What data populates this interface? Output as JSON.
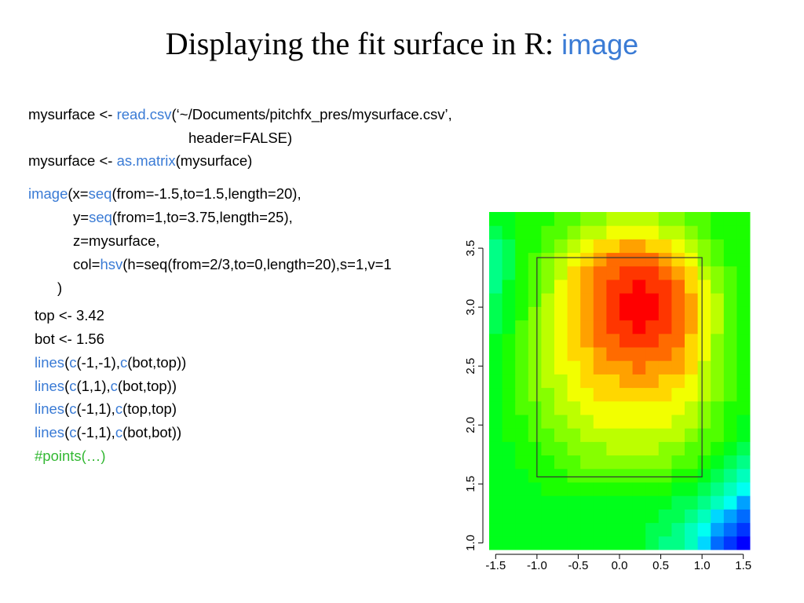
{
  "slide": {
    "title": [
      "Displaying the fit surface in R: ",
      "image"
    ]
  },
  "code": {
    "block1": [
      [
        "mysurface <- ",
        "read.csv",
        "(‘~/Documents/pitchfx_pres/mysurface.csv’,"
      ],
      [
        "header=FALSE)"
      ],
      [
        "mysurface <- ",
        "as.matrix",
        "(mysurface)"
      ]
    ],
    "block2": [
      [
        "image",
        "(x=",
        "seq",
        "(from=-1.5,to=1.5,length=20),"
      ],
      [
        "y=",
        "seq",
        "(from=1,to=3.75,length=25),"
      ],
      [
        "z=mysurface,"
      ],
      [
        "col=",
        "hsv",
        "(h=seq(from=2/3,to=0,length=20),s=1,v=1"
      ],
      [
        ")"
      ]
    ],
    "block3": [
      [
        "top <- 3.42"
      ],
      [
        "bot <- 1.56"
      ],
      [
        "lines",
        "(",
        "c",
        "(-1,-1),",
        "c",
        "(bot,top))"
      ],
      [
        "lines",
        "(",
        "c",
        "(1,1),",
        "c",
        "(bot,top))"
      ],
      [
        "lines",
        "(",
        "c",
        "(-1,1),",
        "c",
        "(top,top)"
      ],
      [
        "lines",
        "(",
        "c",
        "(-1,1),",
        "c",
        "(bot,bot))"
      ],
      [
        "#points(…)"
      ]
    ]
  },
  "chart_data": {
    "type": "heatmap",
    "xlim": [
      -1.579,
      1.579
    ],
    "ylim": [
      0.943,
      3.807
    ],
    "xticks": [
      -1.5,
      {
        "value": -1,
        "label": "-1.0"
      },
      -0.5,
      {
        "value": 0,
        "label": "0.0"
      },
      0.5,
      {
        "value": 1,
        "label": "1.0"
      },
      1.5
    ],
    "yticks": [
      {
        "value": 1,
        "label": "1.0"
      },
      1.5,
      {
        "value": 2,
        "label": "2.0"
      },
      2.5,
      {
        "value": 3,
        "label": "3.0"
      },
      3.5
    ],
    "colors": [
      "#0000FF",
      "#0036FF",
      "#006BFF",
      "#00A1FF",
      "#00D7FF",
      "#00FFF2",
      "#00FFBC",
      "#00FF86",
      "#00FF50",
      "#00FF1B",
      "#1BFF00",
      "#50FF00",
      "#86FF00",
      "#BCFF00",
      "#F2FF00",
      "#FFD700",
      "#FFA100",
      "#FF6B00",
      "#FF3600",
      "#FF0000"
    ],
    "z": [
      [
        9,
        9,
        9,
        9,
        9,
        9,
        9,
        9,
        9,
        9,
        9,
        9,
        8,
        7,
        7,
        6,
        4,
        2,
        1,
        0
      ],
      [
        9,
        9,
        9,
        9,
        9,
        9,
        9,
        9,
        9,
        9,
        9,
        9,
        8,
        8,
        7,
        6,
        5,
        3,
        2,
        1
      ],
      [
        9,
        9,
        9,
        9,
        9,
        9,
        9,
        9,
        9,
        9,
        9,
        9,
        9,
        8,
        8,
        7,
        6,
        4,
        3,
        2
      ],
      [
        9,
        9,
        9,
        9,
        9,
        9,
        9,
        9,
        9,
        9,
        9,
        9,
        9,
        9,
        8,
        8,
        7,
        6,
        5,
        3
      ],
      [
        9,
        9,
        9,
        9,
        10,
        10,
        10,
        10,
        10,
        10,
        10,
        10,
        10,
        10,
        9,
        9,
        8,
        7,
        6,
        5
      ],
      [
        9,
        9,
        9,
        10,
        10,
        10,
        11,
        11,
        11,
        11,
        11,
        11,
        11,
        11,
        10,
        10,
        9,
        8,
        7,
        6
      ],
      [
        9,
        9,
        10,
        10,
        10,
        11,
        11,
        12,
        12,
        12,
        12,
        12,
        12,
        12,
        11,
        11,
        10,
        9,
        8,
        7
      ],
      [
        9,
        9,
        10,
        10,
        11,
        11,
        12,
        12,
        12,
        13,
        13,
        13,
        13,
        12,
        12,
        11,
        11,
        10,
        9,
        8
      ],
      [
        9,
        10,
        10,
        11,
        11,
        12,
        12,
        13,
        13,
        13,
        13,
        13,
        13,
        13,
        13,
        12,
        11,
        11,
        10,
        9
      ],
      [
        9,
        10,
        10,
        11,
        12,
        12,
        13,
        13,
        14,
        14,
        14,
        14,
        14,
        14,
        13,
        13,
        12,
        11,
        10,
        9
      ],
      [
        9,
        10,
        11,
        11,
        12,
        13,
        13,
        14,
        14,
        14,
        14,
        14,
        14,
        14,
        14,
        13,
        12,
        11,
        10,
        10
      ],
      [
        9,
        10,
        11,
        12,
        12,
        13,
        14,
        14,
        15,
        15,
        15,
        15,
        15,
        15,
        14,
        14,
        13,
        12,
        11,
        10
      ],
      [
        9,
        10,
        11,
        12,
        13,
        13,
        14,
        15,
        15,
        15,
        16,
        16,
        16,
        15,
        15,
        14,
        13,
        12,
        11,
        10
      ],
      [
        9,
        10,
        11,
        12,
        13,
        14,
        14,
        15,
        16,
        16,
        16,
        17,
        16,
        16,
        16,
        15,
        13,
        12,
        11,
        10
      ],
      [
        9,
        10,
        11,
        12,
        13,
        14,
        15,
        15,
        16,
        17,
        17,
        17,
        17,
        17,
        16,
        15,
        14,
        12,
        11,
        10
      ],
      [
        9,
        10,
        11,
        12,
        13,
        14,
        15,
        16,
        17,
        17,
        18,
        18,
        18,
        17,
        17,
        15,
        14,
        12,
        11,
        10
      ],
      [
        8,
        9,
        11,
        12,
        13,
        14,
        15,
        16,
        17,
        18,
        18,
        19,
        18,
        18,
        17,
        16,
        14,
        13,
        11,
        10
      ],
      [
        8,
        9,
        10,
        12,
        13,
        14,
        15,
        16,
        17,
        18,
        19,
        19,
        19,
        18,
        17,
        16,
        14,
        13,
        11,
        10
      ],
      [
        8,
        9,
        10,
        11,
        13,
        14,
        15,
        16,
        17,
        18,
        19,
        19,
        19,
        18,
        17,
        16,
        14,
        13,
        11,
        10
      ],
      [
        7,
        9,
        10,
        11,
        12,
        14,
        15,
        16,
        17,
        18,
        18,
        19,
        18,
        18,
        17,
        15,
        14,
        12,
        11,
        10
      ],
      [
        7,
        8,
        10,
        11,
        12,
        13,
        15,
        16,
        17,
        17,
        18,
        18,
        18,
        17,
        16,
        15,
        13,
        12,
        11,
        10
      ],
      [
        7,
        8,
        10,
        11,
        12,
        13,
        14,
        15,
        16,
        17,
        17,
        17,
        17,
        16,
        15,
        14,
        12,
        11,
        10,
        10
      ],
      [
        7,
        8,
        10,
        10,
        11,
        12,
        13,
        14,
        15,
        15,
        16,
        16,
        15,
        15,
        14,
        13,
        12,
        11,
        10,
        10
      ],
      [
        8,
        9,
        10,
        10,
        11,
        11,
        12,
        13,
        13,
        14,
        14,
        14,
        14,
        13,
        13,
        12,
        11,
        10,
        10,
        10
      ],
      [
        9,
        9,
        10,
        10,
        10,
        11,
        11,
        12,
        12,
        13,
        13,
        13,
        13,
        12,
        12,
        11,
        11,
        10,
        10,
        10
      ]
    ],
    "box": {
      "x": [
        -1,
        1
      ],
      "y": [
        1.56,
        3.42
      ]
    }
  }
}
